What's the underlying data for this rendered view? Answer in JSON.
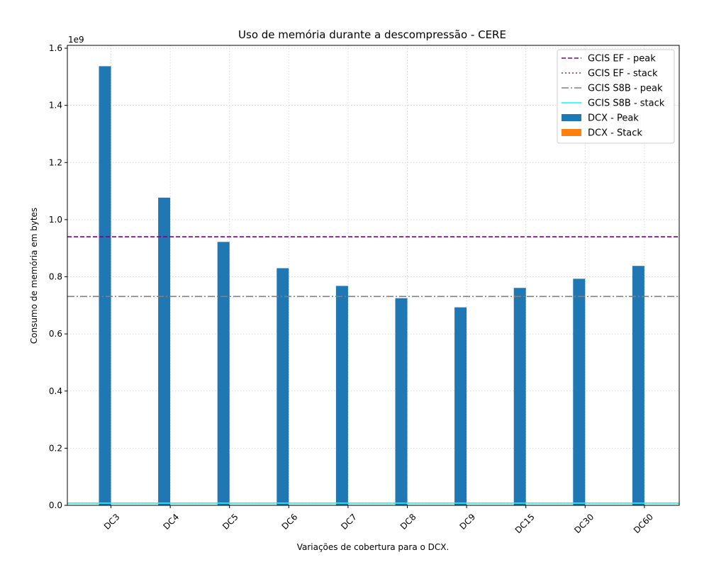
{
  "chart_data": {
    "type": "bar",
    "title": "Uso de memória durante a descompressão -  CERE",
    "xlabel": "Variações de cobertura para o DCX.",
    "ylabel": "Consumo de memória em bytes",
    "offset_label": "1e9",
    "y_scale": 1000000000,
    "ylim": [
      0,
      1610000000
    ],
    "yticks": [
      0,
      200000000,
      400000000,
      600000000,
      800000000,
      1000000000,
      1200000000,
      1400000000,
      1600000000
    ],
    "ytick_labels": [
      "0.0",
      "0.2",
      "0.4",
      "0.6",
      "0.8",
      "1.0",
      "1.2",
      "1.4",
      "1.6"
    ],
    "grid": true,
    "legend_position": "top-right",
    "categories": [
      "DC3",
      "DC4",
      "DC5",
      "DC6",
      "DC7",
      "DC8",
      "DC9",
      "DC15",
      "DC30",
      "DC60"
    ],
    "series": [
      {
        "name": "DCX - Peak",
        "color": "#1f77b4",
        "values": [
          1537000000,
          1077000000,
          922000000,
          830000000,
          768000000,
          725000000,
          693000000,
          761000000,
          793000000,
          838000000
        ]
      },
      {
        "name": "DCX - Stack",
        "color": "#ff7f0e",
        "values": [
          0,
          0,
          0,
          0,
          0,
          0,
          0,
          0,
          0,
          0
        ]
      }
    ],
    "reference_lines": [
      {
        "name": "GCIS EF - peak",
        "value": 940000000,
        "color": "#800080",
        "style": "dashed"
      },
      {
        "name": "GCIS EF - stack",
        "value": 8000000,
        "color": "#a52a2a",
        "style": "dotted"
      },
      {
        "name": "GCIS S8B - peak",
        "value": 731000000,
        "color": "#808080",
        "style": "dashdot"
      },
      {
        "name": "GCIS S8B - stack",
        "value": 8000000,
        "color": "#00ffff",
        "style": "solid"
      }
    ],
    "legend": [
      {
        "label": "GCIS EF - peak",
        "kind": "line",
        "color": "#800080",
        "style": "dashed"
      },
      {
        "label": "GCIS EF - stack",
        "kind": "line",
        "color": "#a52a2a",
        "style": "dotted"
      },
      {
        "label": "GCIS S8B - peak",
        "kind": "line",
        "color": "#808080",
        "style": "dashdot"
      },
      {
        "label": "GCIS S8B - stack",
        "kind": "line",
        "color": "#00ffff",
        "style": "solid"
      },
      {
        "label": "DCX - Peak",
        "kind": "patch",
        "color": "#1f77b4"
      },
      {
        "label": "DCX - Stack",
        "kind": "patch",
        "color": "#ff7f0e"
      }
    ]
  }
}
